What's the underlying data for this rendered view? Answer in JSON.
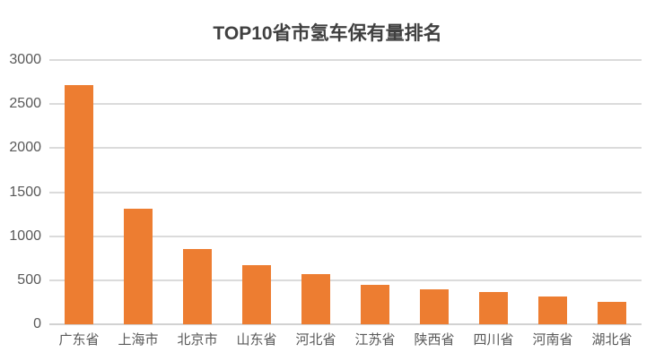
{
  "chart_data": {
    "type": "bar",
    "title": "TOP10省市氢车保有量排名",
    "categories": [
      "广东省",
      "上海市",
      "北京市",
      "山东省",
      "河北省",
      "江苏省",
      "陕西省",
      "四川省",
      "河南省",
      "湖北省"
    ],
    "values": [
      2720,
      1310,
      850,
      675,
      565,
      445,
      400,
      365,
      320,
      255
    ],
    "xlabel": "",
    "ylabel": "",
    "ylim": [
      0,
      3000
    ],
    "yticks": [
      0,
      500,
      1000,
      1500,
      2000,
      2500,
      3000
    ],
    "grid": "horizontal",
    "legend_position": "none",
    "bar_color": "#ED7D31"
  },
  "colors": {
    "background": "#FFFFFF",
    "bar": "#ED7D31",
    "gridline": "#DBDBDB",
    "axis_line": "#D2D2D2",
    "title_text": "#404040",
    "axis_text": "#595959"
  }
}
